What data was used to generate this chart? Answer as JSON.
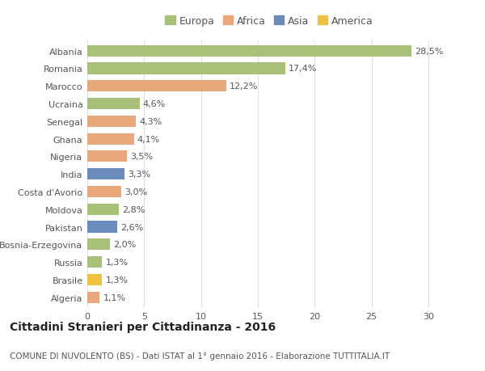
{
  "categories": [
    "Albania",
    "Romania",
    "Marocco",
    "Ucraina",
    "Senegal",
    "Ghana",
    "Nigeria",
    "India",
    "Costa d'Avorio",
    "Moldova",
    "Pakistan",
    "Bosnia-Erzegovina",
    "Russia",
    "Brasile",
    "Algeria"
  ],
  "values": [
    28.5,
    17.4,
    12.2,
    4.6,
    4.3,
    4.1,
    3.5,
    3.3,
    3.0,
    2.8,
    2.6,
    2.0,
    1.3,
    1.3,
    1.1
  ],
  "labels": [
    "28,5%",
    "17,4%",
    "12,2%",
    "4,6%",
    "4,3%",
    "4,1%",
    "3,5%",
    "3,3%",
    "3,0%",
    "2,8%",
    "2,6%",
    "2,0%",
    "1,3%",
    "1,3%",
    "1,1%"
  ],
  "continents": [
    "Europa",
    "Europa",
    "Africa",
    "Europa",
    "Africa",
    "Africa",
    "Africa",
    "Asia",
    "Africa",
    "Europa",
    "Asia",
    "Europa",
    "Europa",
    "America",
    "Africa"
  ],
  "continent_colors": {
    "Europa": "#a8c07a",
    "Africa": "#e8a87c",
    "Asia": "#6b8cba",
    "America": "#f0c040"
  },
  "legend_order": [
    "Europa",
    "Africa",
    "Asia",
    "America"
  ],
  "title": "Cittadini Stranieri per Cittadinanza - 2016",
  "subtitle": "COMUNE DI NUVOLENTO (BS) - Dati ISTAT al 1° gennaio 2016 - Elaborazione TUTTITALIA.IT",
  "xlim": [
    0,
    32
  ],
  "xticks": [
    0,
    5,
    10,
    15,
    20,
    25,
    30
  ],
  "background_color": "#ffffff",
  "grid_color": "#e0e0e0",
  "bar_height": 0.65,
  "title_fontsize": 10,
  "subtitle_fontsize": 7.5,
  "label_fontsize": 8,
  "tick_fontsize": 8,
  "legend_fontsize": 9
}
